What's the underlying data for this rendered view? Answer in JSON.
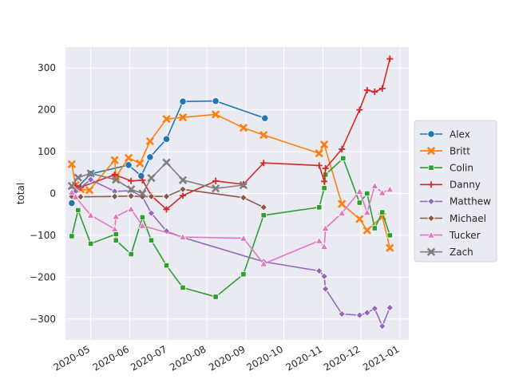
{
  "chart_data": {
    "type": "line",
    "title": "",
    "xlabel": "",
    "ylabel": "total",
    "x_axis_type": "date",
    "xlim": [
      "2020-04-11",
      "2021-01-08"
    ],
    "ylim": [
      -350,
      350
    ],
    "x_ticks": [
      "2020-05-01",
      "2020-06-01",
      "2020-07-01",
      "2020-08-01",
      "2020-09-01",
      "2020-10-01",
      "2020-11-01",
      "2020-12-01",
      "2021-01-01"
    ],
    "x_tick_labels": [
      "2020-05",
      "2020-06",
      "2020-07",
      "2020-08",
      "2020-09",
      "2020-10",
      "2020-11",
      "2020-12",
      "2021-01"
    ],
    "y_ticks": [
      -300,
      -200,
      -100,
      0,
      100,
      200,
      300
    ],
    "y_tick_labels": [
      "−300",
      "−200",
      "−100",
      "0",
      "100",
      "200",
      "300"
    ],
    "grid": true,
    "background": "#eaeaf2",
    "legend_position": "center-right",
    "series": [
      {
        "name": "Alex",
        "color": "#1f77b4",
        "marker": "circle",
        "points": [
          [
            "2020-04-16",
            -23
          ],
          [
            "2020-04-19",
            10
          ],
          [
            "2020-05-01",
            47
          ],
          [
            "2020-05-31",
            68
          ],
          [
            "2020-06-10",
            42
          ],
          [
            "2020-06-17",
            87
          ],
          [
            "2020-06-30",
            130
          ],
          [
            "2020-07-13",
            220
          ],
          [
            "2020-08-08",
            221
          ],
          [
            "2020-09-16",
            180
          ]
        ]
      },
      {
        "name": "Britt",
        "color": "#ff7f0e",
        "marker": "x",
        "points": [
          [
            "2020-04-16",
            70
          ],
          [
            "2020-04-19",
            20
          ],
          [
            "2020-04-23",
            10
          ],
          [
            "2020-04-30",
            8
          ],
          [
            "2020-05-20",
            80
          ],
          [
            "2020-05-21",
            40
          ],
          [
            "2020-05-31",
            85
          ],
          [
            "2020-06-09",
            72
          ],
          [
            "2020-06-17",
            125
          ],
          [
            "2020-06-30",
            178
          ],
          [
            "2020-07-13",
            182
          ],
          [
            "2020-08-08",
            189
          ],
          [
            "2020-08-30",
            157
          ],
          [
            "2020-09-15",
            140
          ],
          [
            "2020-10-29",
            96
          ],
          [
            "2020-11-02",
            117
          ],
          [
            "2020-11-16",
            -25
          ],
          [
            "2020-11-30",
            -61
          ],
          [
            "2020-12-06",
            -88
          ],
          [
            "2020-12-18",
            -55
          ],
          [
            "2020-12-24",
            -130
          ]
        ]
      },
      {
        "name": "Colin",
        "color": "#2ca02c",
        "marker": "square",
        "points": [
          [
            "2020-04-16",
            -102
          ],
          [
            "2020-04-21",
            -40
          ],
          [
            "2020-05-01",
            -120
          ],
          [
            "2020-05-21",
            -97
          ],
          [
            "2020-05-21",
            -112
          ],
          [
            "2020-06-02",
            -145
          ],
          [
            "2020-06-11",
            -57
          ],
          [
            "2020-06-18",
            -112
          ],
          [
            "2020-06-30",
            -172
          ],
          [
            "2020-07-13",
            -225
          ],
          [
            "2020-08-08",
            -247
          ],
          [
            "2020-08-30",
            -193
          ],
          [
            "2020-09-15",
            -52
          ],
          [
            "2020-10-29",
            -33
          ],
          [
            "2020-11-02",
            13
          ],
          [
            "2020-11-03",
            45
          ],
          [
            "2020-11-17",
            84
          ],
          [
            "2020-11-30",
            -22
          ],
          [
            "2020-12-06",
            0
          ],
          [
            "2020-12-12",
            -83
          ],
          [
            "2020-12-18",
            -45
          ],
          [
            "2020-12-24",
            -100
          ]
        ]
      },
      {
        "name": "Danny",
        "color": "#d62728",
        "marker": "plus",
        "points": [
          [
            "2020-04-16",
            0
          ],
          [
            "2020-04-19",
            18
          ],
          [
            "2020-04-23",
            15
          ],
          [
            "2020-05-20",
            45
          ],
          [
            "2020-06-02",
            30
          ],
          [
            "2020-06-11",
            32
          ],
          [
            "2020-06-18",
            -5
          ],
          [
            "2020-06-30",
            -38
          ],
          [
            "2020-07-13",
            -5
          ],
          [
            "2020-08-08",
            30
          ],
          [
            "2020-08-30",
            22
          ],
          [
            "2020-09-15",
            73
          ],
          [
            "2020-10-29",
            67
          ],
          [
            "2020-11-02",
            29
          ],
          [
            "2020-11-03",
            60
          ],
          [
            "2020-11-16",
            106
          ],
          [
            "2020-11-30",
            200
          ],
          [
            "2020-12-06",
            247
          ],
          [
            "2020-12-12",
            243
          ],
          [
            "2020-12-18",
            251
          ],
          [
            "2020-12-24",
            322
          ]
        ]
      },
      {
        "name": "Matthew",
        "color": "#9467bd",
        "marker": "diamond",
        "points": [
          [
            "2020-04-16",
            15
          ],
          [
            "2020-04-19",
            5
          ],
          [
            "2020-05-01",
            33
          ],
          [
            "2020-05-20",
            5
          ],
          [
            "2020-06-02",
            7
          ],
          [
            "2020-06-11",
            -8
          ],
          [
            "2020-06-18",
            -47
          ],
          [
            "2020-06-30",
            -90
          ],
          [
            "2020-07-13",
            -105
          ],
          [
            "2020-09-15",
            -163
          ],
          [
            "2020-10-29",
            -185
          ],
          [
            "2020-11-02",
            -198
          ],
          [
            "2020-11-03",
            -228
          ],
          [
            "2020-11-16",
            -288
          ],
          [
            "2020-11-30",
            -291
          ],
          [
            "2020-12-06",
            -285
          ],
          [
            "2020-12-12",
            -275
          ],
          [
            "2020-12-18",
            -317
          ],
          [
            "2020-12-24",
            -273
          ]
        ]
      },
      {
        "name": "Michael",
        "color": "#8c564b",
        "marker": "diamond",
        "points": [
          [
            "2020-04-16",
            -7
          ],
          [
            "2020-04-23",
            -8
          ],
          [
            "2020-05-20",
            -7
          ],
          [
            "2020-06-02",
            -6
          ],
          [
            "2020-06-11",
            -8
          ],
          [
            "2020-06-18",
            -7
          ],
          [
            "2020-06-30",
            -7
          ],
          [
            "2020-07-13",
            10
          ],
          [
            "2020-08-30",
            -10
          ],
          [
            "2020-09-15",
            -33
          ]
        ]
      },
      {
        "name": "Tucker",
        "color": "#e377c2",
        "marker": "triangle",
        "points": [
          [
            "2020-04-16",
            3
          ],
          [
            "2020-04-19",
            -8
          ],
          [
            "2020-05-01",
            -52
          ],
          [
            "2020-05-20",
            -85
          ],
          [
            "2020-05-21",
            -55
          ],
          [
            "2020-06-02",
            -37
          ],
          [
            "2020-06-11",
            -77
          ],
          [
            "2020-07-13",
            -104
          ],
          [
            "2020-08-30",
            -107
          ],
          [
            "2020-09-15",
            -168
          ],
          [
            "2020-10-29",
            -113
          ],
          [
            "2020-11-02",
            -127
          ],
          [
            "2020-11-03",
            -83
          ],
          [
            "2020-11-16",
            -47
          ],
          [
            "2020-11-30",
            5
          ],
          [
            "2020-12-06",
            -45
          ],
          [
            "2020-12-12",
            18
          ],
          [
            "2020-12-18",
            2
          ],
          [
            "2020-12-24",
            10
          ]
        ]
      },
      {
        "name": "Zach",
        "color": "#7f7f7f",
        "marker": "x",
        "points": [
          [
            "2020-04-16",
            18
          ],
          [
            "2020-04-21",
            38
          ],
          [
            "2020-05-01",
            48
          ],
          [
            "2020-05-21",
            33
          ],
          [
            "2020-06-02",
            10
          ],
          [
            "2020-06-11",
            0
          ],
          [
            "2020-06-18",
            37
          ],
          [
            "2020-06-30",
            74
          ],
          [
            "2020-07-13",
            32
          ],
          [
            "2020-08-08",
            12
          ],
          [
            "2020-08-30",
            20
          ]
        ]
      }
    ]
  }
}
